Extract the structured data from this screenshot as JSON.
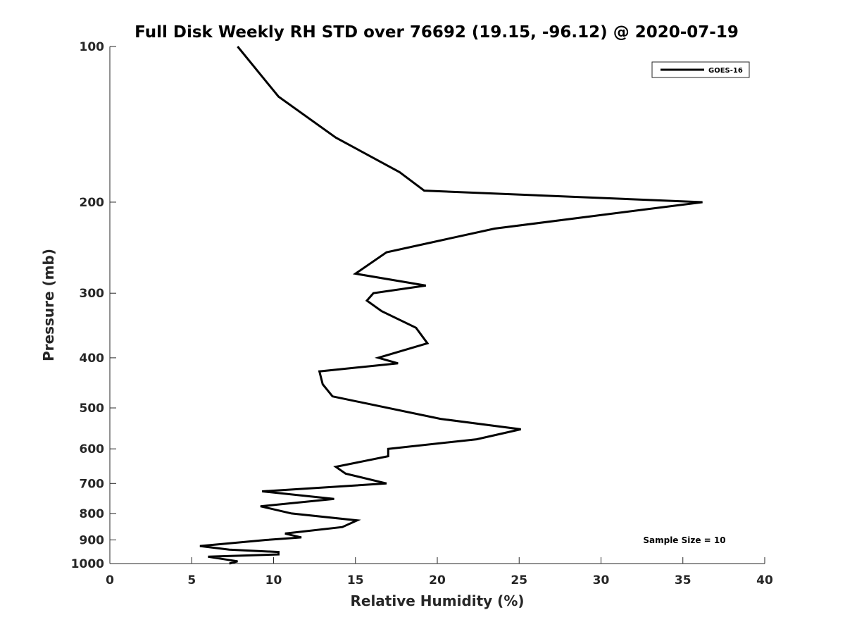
{
  "chart_data": {
    "type": "line",
    "title": "Full Disk Weekly RH STD over 76692 (19.15, -96.12) @ 2020-07-19",
    "xlabel": "Relative Humidity (%)",
    "ylabel": "Pressure (mb)",
    "xlim": [
      0,
      40
    ],
    "ylim": [
      100,
      1000
    ],
    "y_scale": "log",
    "y_reversed": true,
    "x_ticks": [
      0,
      5,
      10,
      15,
      20,
      25,
      30,
      35,
      40
    ],
    "y_ticks": [
      100,
      200,
      300,
      400,
      500,
      600,
      700,
      800,
      900,
      1000
    ],
    "grid": false,
    "legend_position": "top-right",
    "annotation": "Sample Size = 10",
    "series": [
      {
        "name": "GOES-16",
        "color": "#000000",
        "points": [
          [
            7.8,
            100
          ],
          [
            10.3,
            125
          ],
          [
            13.8,
            150
          ],
          [
            17.7,
            175
          ],
          [
            19.2,
            190
          ],
          [
            36.2,
            200
          ],
          [
            23.5,
            225
          ],
          [
            16.9,
            250
          ],
          [
            15.0,
            275
          ],
          [
            19.3,
            290
          ],
          [
            16.1,
            300
          ],
          [
            15.7,
            310
          ],
          [
            16.6,
            325
          ],
          [
            18.7,
            350
          ],
          [
            19.4,
            375
          ],
          [
            16.4,
            400
          ],
          [
            17.6,
            410
          ],
          [
            12.8,
            425
          ],
          [
            13.0,
            450
          ],
          [
            13.6,
            475
          ],
          [
            20.2,
            525
          ],
          [
            25.1,
            550
          ],
          [
            22.4,
            575
          ],
          [
            17.0,
            600
          ],
          [
            17.0,
            620
          ],
          [
            13.8,
            650
          ],
          [
            14.4,
            670
          ],
          [
            16.9,
            700
          ],
          [
            9.3,
            725
          ],
          [
            13.7,
            750
          ],
          [
            9.2,
            775
          ],
          [
            11.1,
            800
          ],
          [
            15.1,
            825
          ],
          [
            14.2,
            850
          ],
          [
            10.7,
            875
          ],
          [
            11.7,
            890
          ],
          [
            9.6,
            900
          ],
          [
            5.5,
            925
          ],
          [
            7.3,
            940
          ],
          [
            10.3,
            950
          ],
          [
            10.3,
            960
          ],
          [
            6.0,
            970
          ],
          [
            7.8,
            990
          ],
          [
            7.3,
            1000
          ]
        ]
      }
    ]
  }
}
